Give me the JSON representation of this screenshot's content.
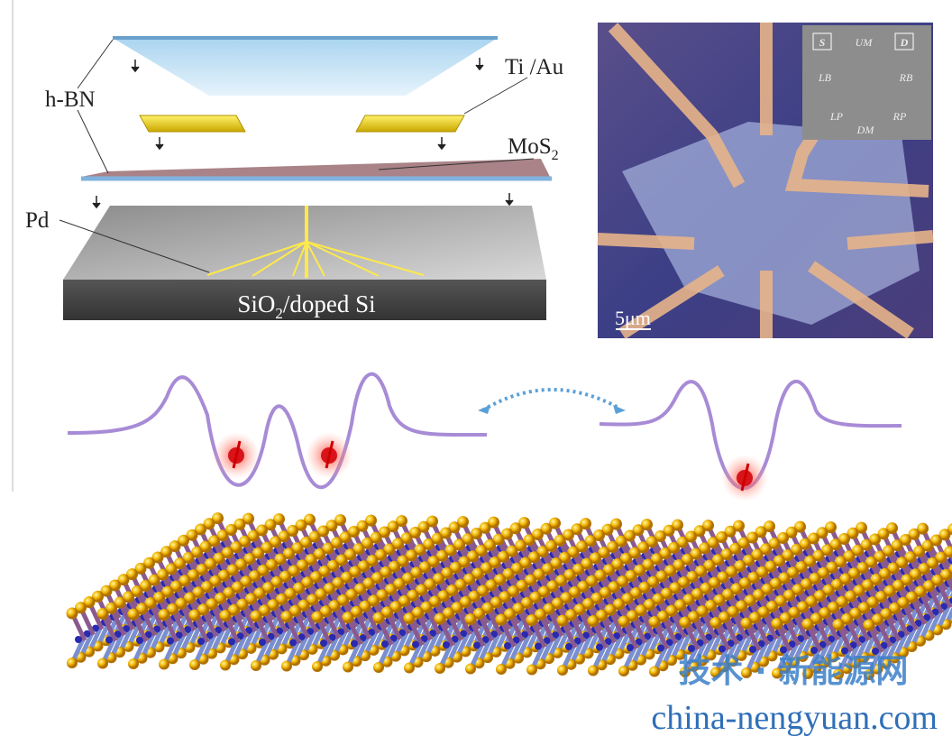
{
  "left_panel": {
    "hbn": "h-BN",
    "tiau": "Ti /Au",
    "mos2": {
      "text": "MoS",
      "sub": "2"
    },
    "pd": "Pd",
    "substrate": {
      "text": "SiO",
      "sub": "2",
      "rest": "/doped Si"
    }
  },
  "micrograph": {
    "scale_bar": "5μm",
    "inset_labels": [
      "S",
      "D",
      "UM",
      "LB",
      "RB",
      "LP",
      "DM",
      "RP"
    ]
  },
  "watermark": {
    "title": "技术 · 新能源网",
    "url": "china-nengyuan.com"
  }
}
